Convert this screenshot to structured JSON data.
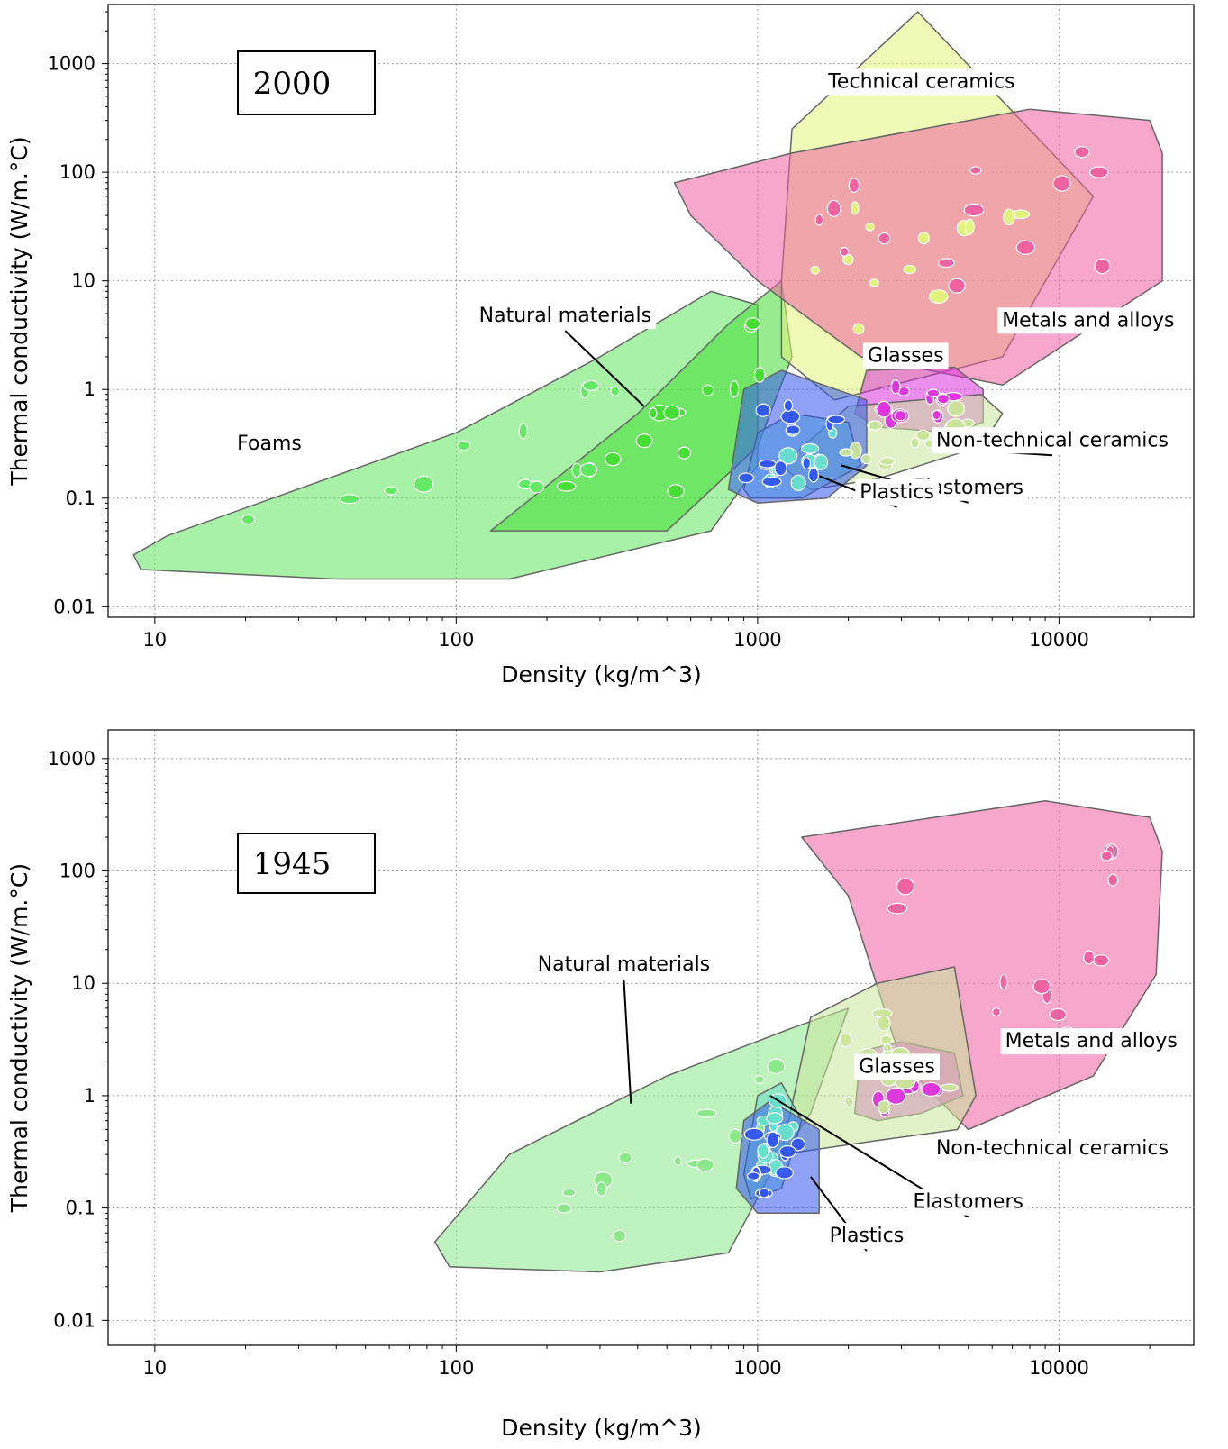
{
  "chart_data": [
    {
      "type": "scatter",
      "year_label": "2000",
      "xlabel": "Density (kg/m^3)",
      "ylabel": "Thermal conductivity (W/m.°C)",
      "x_scale": "log",
      "y_scale": "log",
      "xlim": [
        7,
        28000
      ],
      "ylim": [
        0.008,
        3500
      ],
      "x_ticks": [
        10,
        100,
        1000,
        10000
      ],
      "x_tick_labels": [
        "10",
        "100",
        "1000",
        "10000"
      ],
      "y_ticks": [
        0.01,
        0.1,
        1,
        10,
        100,
        1000
      ],
      "y_tick_labels": [
        "0.01",
        "0.1",
        "1",
        "10",
        "100",
        "1000"
      ],
      "grid": true,
      "families": [
        {
          "name": "Foams",
          "color": "#5fe85f",
          "label_at": [
            24,
            0.28
          ],
          "outline": [
            [
              8.5,
              0.03
            ],
            [
              11,
              0.045
            ],
            [
              100,
              0.4
            ],
            [
              300,
              2
            ],
            [
              700,
              8
            ],
            [
              1000,
              6
            ],
            [
              1000,
              0.2
            ],
            [
              700,
              0.05
            ],
            [
              150,
              0.018
            ],
            [
              40,
              0.018
            ],
            [
              9,
              0.022
            ]
          ]
        },
        {
          "name": "Natural materials",
          "color": "#44dd33",
          "label_at": [
            230,
            4.2
          ],
          "pointer_to": [
            420,
            0.7
          ],
          "outline": [
            [
              130,
              0.05
            ],
            [
              400,
              0.6
            ],
            [
              800,
              4
            ],
            [
              1200,
              10
            ],
            [
              1300,
              2
            ],
            [
              1000,
              0.3
            ],
            [
              500,
              0.05
            ]
          ]
        },
        {
          "name": "Technical ceramics",
          "color": "#e2f57a",
          "label_at": [
            3500,
            600
          ],
          "outline": [
            [
              1200,
              10
            ],
            [
              1300,
              250
            ],
            [
              3400,
              3000
            ],
            [
              13000,
              60
            ],
            [
              6500,
              2
            ],
            [
              1800,
              0.8
            ],
            [
              1200,
              2
            ]
          ]
        },
        {
          "name": "Metals and alloys",
          "color": "#ee5fa0",
          "label_at": [
            12500,
            3.8
          ],
          "outline": [
            [
              530,
              80
            ],
            [
              1300,
              150
            ],
            [
              8000,
              380
            ],
            [
              20000,
              300
            ],
            [
              22000,
              150
            ],
            [
              22000,
              10
            ],
            [
              6500,
              1.1
            ],
            [
              2200,
              2
            ],
            [
              1000,
              10
            ],
            [
              600,
              40
            ]
          ]
        },
        {
          "name": "Glasses",
          "color": "#dd33dd",
          "label_at": [
            3100,
            1.8
          ],
          "outline": [
            [
              2100,
              0.6
            ],
            [
              2300,
              1.5
            ],
            [
              4500,
              1.6
            ],
            [
              5600,
              1
            ],
            [
              5600,
              0.5
            ],
            [
              4500,
              0.4
            ],
            [
              2500,
              0.45
            ]
          ]
        },
        {
          "name": "Non-technical ceramics",
          "color": "#c9e59a",
          "label_at": [
            9500,
            0.3
          ],
          "pointer_to": [
            4800,
            0.28
          ],
          "outline": [
            [
              1200,
              0.2
            ],
            [
              2000,
              0.7
            ],
            [
              5500,
              0.9
            ],
            [
              6500,
              0.6
            ],
            [
              5500,
              0.3
            ],
            [
              2500,
              0.15
            ],
            [
              1500,
              0.12
            ]
          ]
        },
        {
          "name": "Elastomers",
          "color": "#66e0cc",
          "label_at": [
            5000,
            0.11
          ],
          "pointer_to": [
            1900,
            0.2
          ],
          "outline": [
            [
              900,
              0.12
            ],
            [
              1000,
              0.4
            ],
            [
              1300,
              0.6
            ],
            [
              2000,
              0.5
            ],
            [
              2200,
              0.2
            ],
            [
              1400,
              0.1
            ],
            [
              950,
              0.1
            ]
          ]
        },
        {
          "name": "Plastics",
          "color": "#3355ee",
          "label_at": [
            2900,
            0.1
          ],
          "pointer_to": [
            1600,
            0.16
          ],
          "outline": [
            [
              800,
              0.12
            ],
            [
              900,
              1
            ],
            [
              1200,
              1.5
            ],
            [
              2300,
              0.8
            ],
            [
              2300,
              0.2
            ],
            [
              1700,
              0.1
            ],
            [
              1000,
              0.09
            ]
          ]
        }
      ]
    },
    {
      "type": "scatter",
      "year_label": "1945",
      "xlabel": "Density (kg/m^3)",
      "ylabel": "Thermal conductivity (W/m.°C)",
      "x_scale": "log",
      "y_scale": "log",
      "xlim": [
        7,
        28000
      ],
      "ylim": [
        0.006,
        1800
      ],
      "x_ticks": [
        10,
        100,
        1000,
        10000
      ],
      "x_tick_labels": [
        "10",
        "100",
        "1000",
        "10000"
      ],
      "y_ticks": [
        0.01,
        0.1,
        1,
        10,
        100,
        1000
      ],
      "y_tick_labels": [
        "0.01",
        "0.1",
        "1",
        "10",
        "100",
        "1000"
      ],
      "grid": true,
      "families": [
        {
          "name": "Natural materials",
          "color": "#88e888",
          "label_at": [
            360,
            13
          ],
          "pointer_to": [
            380,
            0.85
          ],
          "outline": [
            [
              85,
              0.05
            ],
            [
              95,
              0.03
            ],
            [
              300,
              0.027
            ],
            [
              800,
              0.04
            ],
            [
              1100,
              0.2
            ],
            [
              1500,
              0.7
            ],
            [
              2000,
              6
            ],
            [
              1300,
              4
            ],
            [
              500,
              1.5
            ],
            [
              150,
              0.3
            ]
          ]
        },
        {
          "name": "Metals and alloys",
          "color": "#ee5fa0",
          "label_at": [
            12800,
            2.7
          ],
          "outline": [
            [
              1400,
              200
            ],
            [
              9000,
              420
            ],
            [
              20000,
              300
            ],
            [
              22000,
              150
            ],
            [
              21000,
              12
            ],
            [
              13000,
              1.5
            ],
            [
              5000,
              0.5
            ],
            [
              3000,
              2
            ],
            [
              2000,
              60
            ]
          ]
        },
        {
          "name": "Glasses",
          "color": "#dd33dd",
          "label_at": [
            2900,
            1.6
          ],
          "outline": [
            [
              2100,
              0.7
            ],
            [
              2200,
              2.5
            ],
            [
              3000,
              3
            ],
            [
              4500,
              2.4
            ],
            [
              4800,
              1
            ],
            [
              3500,
              0.7
            ],
            [
              2500,
              0.6
            ]
          ]
        },
        {
          "name": "Non-technical ceramics",
          "color": "#c9e59a",
          "label_at": [
            9500,
            0.3
          ],
          "outline": [
            [
              1200,
              0.3
            ],
            [
              1500,
              5
            ],
            [
              2500,
              10
            ],
            [
              4500,
              14
            ],
            [
              5300,
              1
            ],
            [
              4600,
              0.5
            ],
            [
              2500,
              0.4
            ]
          ]
        },
        {
          "name": "Elastomers",
          "color": "#66e0cc",
          "label_at": [
            5000,
            0.1
          ],
          "pointer_to": [
            1100,
            1
          ],
          "outline": [
            [
              900,
              0.2
            ],
            [
              1000,
              1
            ],
            [
              1200,
              1.3
            ],
            [
              1400,
              0.6
            ],
            [
              1200,
              0.15
            ],
            [
              950,
              0.12
            ]
          ]
        },
        {
          "name": "Plastics",
          "color": "#3355ee",
          "label_at": [
            2300,
            0.05
          ],
          "pointer_to": [
            1500,
            0.19
          ],
          "outline": [
            [
              850,
              0.15
            ],
            [
              900,
              0.6
            ],
            [
              1100,
              0.9
            ],
            [
              1600,
              0.5
            ],
            [
              1600,
              0.09
            ],
            [
              1000,
              0.09
            ]
          ]
        }
      ]
    }
  ]
}
